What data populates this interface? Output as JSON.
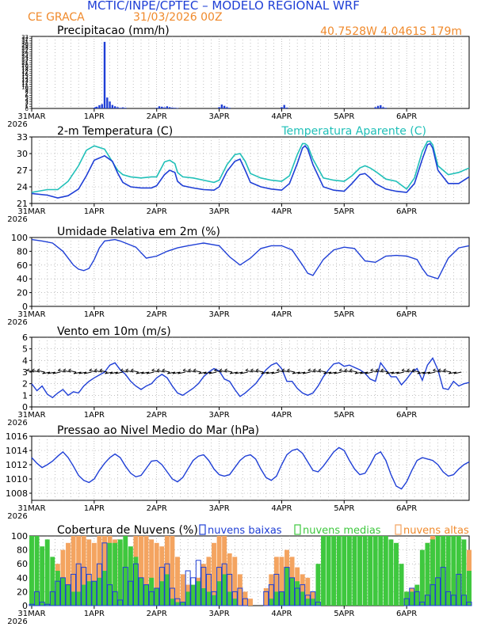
{
  "header": {
    "title": "MCTIC/INPE/CPTEC – MODELO REGIONAL WRF",
    "location": "CE GRACA",
    "run": "31/03/2026 00Z",
    "coords": "40.7528W 4.0461S 179m"
  },
  "x_axis": {
    "ticks": [
      "31MAR",
      "1APR",
      "2APR",
      "3APR",
      "4APR",
      "5APR",
      "6APR"
    ],
    "year": "2026"
  },
  "colors": {
    "blue": "#1f3fd6",
    "cyan": "#20c0b8",
    "black": "#000000",
    "green": "#3ec83e",
    "orange": "#f4a460",
    "orange_text": "#f08a2c"
  },
  "chart_data": [
    {
      "type": "bar",
      "title": "Precipitacao (mm/h)",
      "ylim": [
        0,
        33
      ],
      "x": [
        24.0,
        24.5,
        25,
        26,
        27,
        28,
        29,
        30,
        31,
        32,
        33,
        34,
        35,
        36,
        48,
        49,
        50,
        51,
        52,
        53,
        54,
        55,
        56,
        72,
        73,
        74,
        75,
        76,
        96,
        97,
        98,
        132,
        133,
        134,
        135,
        136
      ],
      "values": [
        0.3,
        0.6,
        0.8,
        1.5,
        2.0,
        30.5,
        5.0,
        3.2,
        1.6,
        1.0,
        0.6,
        0.3,
        0.5,
        0.3,
        0.3,
        1.0,
        0.8,
        0.5,
        1.0,
        0.6,
        0.4,
        0.3,
        0.2,
        0.6,
        1.8,
        1.2,
        0.6,
        0.3,
        0.6,
        1.6,
        0.4,
        0.6,
        1.2,
        1.5,
        0.6,
        0.3
      ]
    },
    {
      "type": "line",
      "title": "2-m Temperatura (C)",
      "ylim": [
        21,
        33
      ],
      "yticks": [
        21,
        24,
        27,
        30,
        33
      ],
      "series": [
        {
          "x": [
            0,
            6,
            10,
            14,
            18,
            21,
            24,
            28,
            31,
            33,
            35,
            38,
            42,
            46,
            48,
            51,
            53,
            55,
            56,
            58,
            62,
            66,
            70,
            72,
            75,
            78,
            80,
            82,
            84,
            88,
            92,
            96,
            99,
            102,
            104,
            105,
            106,
            108,
            112,
            116,
            120,
            123,
            126,
            128,
            130,
            132,
            136,
            140,
            144,
            147,
            150,
            152,
            153,
            154,
            156,
            160,
            164,
            168
          ],
          "values": [
            22.8,
            22.5,
            22.0,
            22.4,
            23.6,
            26.0,
            28.8,
            29.6,
            28.6,
            26.5,
            24.8,
            24.0,
            23.8,
            23.8,
            24.2,
            26.2,
            27.0,
            26.6,
            25.0,
            24.2,
            23.8,
            23.5,
            23.4,
            24.0,
            26.8,
            28.6,
            29.0,
            27.0,
            24.8,
            24.0,
            23.6,
            23.4,
            24.6,
            28.2,
            31.0,
            31.4,
            30.8,
            28.0,
            24.0,
            23.4,
            23.2,
            24.6,
            26.2,
            26.4,
            25.6,
            24.6,
            23.6,
            23.2,
            23.0,
            24.6,
            29.0,
            31.6,
            31.8,
            31.0,
            27.0,
            24.6,
            24.6,
            25.8
          ]
        },
        {
          "x": [
            0,
            6,
            10,
            14,
            18,
            21,
            24,
            28,
            31,
            33,
            35,
            38,
            42,
            46,
            48,
            51,
            53,
            55,
            56,
            58,
            62,
            66,
            70,
            72,
            75,
            78,
            80,
            82,
            84,
            88,
            92,
            96,
            99,
            102,
            104,
            105,
            106,
            108,
            112,
            116,
            120,
            123,
            126,
            128,
            130,
            132,
            136,
            140,
            144,
            147,
            150,
            152,
            153,
            154,
            156,
            160,
            164,
            168
          ],
          "values": [
            23.0,
            23.5,
            23.5,
            25.0,
            27.8,
            30.6,
            31.4,
            30.8,
            28.5,
            27.0,
            26.2,
            25.8,
            25.6,
            25.8,
            25.8,
            28.5,
            28.8,
            28.2,
            26.6,
            25.8,
            25.6,
            25.2,
            24.8,
            25.2,
            28.0,
            29.8,
            30.0,
            28.6,
            26.4,
            25.6,
            25.2,
            25.0,
            26.0,
            29.8,
            31.8,
            31.8,
            31.4,
            29.0,
            25.6,
            25.2,
            25.0,
            26.0,
            27.4,
            27.8,
            27.4,
            26.8,
            25.4,
            25.0,
            23.6,
            25.6,
            30.4,
            32.2,
            32.2,
            31.6,
            27.8,
            26.2,
            26.6,
            27.4
          ]
        }
      ],
      "legend": [
        "Temperatura Aparente (C)"
      ]
    },
    {
      "type": "line",
      "title": "Umidade Relativa em 2m (%)",
      "ylim": [
        0,
        100
      ],
      "yticks": [
        0,
        20,
        40,
        60,
        80,
        100
      ],
      "x": [
        0,
        4,
        8,
        12,
        16,
        18,
        20,
        22,
        24,
        26,
        28,
        32,
        34,
        36,
        40,
        44,
        48,
        52,
        56,
        60,
        66,
        72,
        76,
        80,
        84,
        88,
        92,
        96,
        100,
        104,
        106,
        108,
        112,
        116,
        120,
        124,
        128,
        132,
        136,
        140,
        144,
        148,
        150,
        152,
        156,
        160,
        164,
        168
      ],
      "values": [
        97,
        95,
        92,
        80,
        60,
        54,
        52,
        55,
        68,
        85,
        95,
        97,
        95,
        92,
        86,
        70,
        73,
        80,
        85,
        88,
        92,
        88,
        72,
        60,
        70,
        84,
        88,
        88,
        82,
        60,
        48,
        45,
        68,
        82,
        86,
        84,
        66,
        64,
        73,
        74,
        73,
        68,
        55,
        45,
        40,
        70,
        85,
        88
      ]
    },
    {
      "type": "line",
      "title": "Vento em 10m (m/s)",
      "ylim": [
        0,
        6
      ],
      "yticks": [
        0,
        1,
        2,
        3,
        4,
        5,
        6
      ],
      "x": [
        0,
        2,
        4,
        6,
        8,
        10,
        12,
        14,
        16,
        18,
        20,
        22,
        24,
        28,
        30,
        32,
        34,
        36,
        38,
        40,
        42,
        44,
        46,
        48,
        50,
        52,
        54,
        56,
        58,
        60,
        62,
        64,
        66,
        68,
        70,
        72,
        74,
        76,
        78,
        80,
        82,
        84,
        86,
        88,
        90,
        92,
        94,
        96,
        98,
        100,
        102,
        104,
        106,
        108,
        110,
        112,
        114,
        116,
        118,
        120,
        122,
        124,
        126,
        128,
        130,
        132,
        134,
        136,
        138,
        140,
        142,
        144,
        146,
        148,
        150,
        152,
        154,
        156,
        158,
        160,
        162,
        164,
        166,
        168
      ],
      "values": [
        2.0,
        1.4,
        1.8,
        1.1,
        0.8,
        1.2,
        1.5,
        1.0,
        1.3,
        1.2,
        1.8,
        2.2,
        2.5,
        3.0,
        3.6,
        3.8,
        3.2,
        2.8,
        2.2,
        1.8,
        1.5,
        1.8,
        2.0,
        2.5,
        2.8,
        2.5,
        1.8,
        1.2,
        1.0,
        1.3,
        1.6,
        2.0,
        2.6,
        3.0,
        3.3,
        3.1,
        2.4,
        2.2,
        1.5,
        0.9,
        1.2,
        1.6,
        2.0,
        2.6,
        3.2,
        3.6,
        3.8,
        3.3,
        2.2,
        2.2,
        1.6,
        1.2,
        1.0,
        1.2,
        1.8,
        2.6,
        3.2,
        3.7,
        3.8,
        3.5,
        3.6,
        3.4,
        3.2,
        2.9,
        2.4,
        2.2,
        3.8,
        3.2,
        2.6,
        2.6,
        1.9,
        2.4,
        3.0,
        3.3,
        2.3,
        3.6,
        4.2,
        3.2,
        1.6,
        1.5,
        2.2,
        1.8,
        2.0,
        2.1
      ]
    },
    {
      "type": "line",
      "title": "Pressao ao Nivel Medio do Mar (hPa)",
      "ylim": [
        1007,
        1016
      ],
      "yticks": [
        1008,
        1010,
        1012,
        1014,
        1016
      ],
      "x": [
        0,
        2,
        4,
        6,
        8,
        10,
        12,
        14,
        16,
        18,
        20,
        22,
        24,
        26,
        28,
        30,
        32,
        34,
        36,
        38,
        40,
        42,
        44,
        46,
        48,
        50,
        52,
        54,
        56,
        58,
        60,
        62,
        64,
        66,
        68,
        70,
        72,
        74,
        76,
        78,
        80,
        82,
        84,
        86,
        88,
        90,
        92,
        94,
        96,
        98,
        100,
        102,
        104,
        106,
        108,
        110,
        112,
        114,
        116,
        118,
        120,
        122,
        124,
        126,
        128,
        130,
        132,
        134,
        136,
        138,
        140,
        142,
        144,
        146,
        148,
        150,
        152,
        154,
        156,
        158,
        160,
        162,
        164,
        166,
        168
      ],
      "values": [
        1013.0,
        1012.2,
        1011.6,
        1012.0,
        1012.5,
        1013.2,
        1013.8,
        1013.0,
        1011.8,
        1010.5,
        1009.8,
        1009.5,
        1010.0,
        1011.2,
        1012.2,
        1013.0,
        1013.5,
        1013.0,
        1011.8,
        1010.8,
        1010.3,
        1010.5,
        1011.5,
        1012.5,
        1012.6,
        1012.0,
        1011.0,
        1010.0,
        1009.6,
        1010.2,
        1011.4,
        1012.6,
        1013.2,
        1013.4,
        1012.6,
        1011.4,
        1010.6,
        1010.4,
        1010.6,
        1011.6,
        1012.6,
        1013.2,
        1013.4,
        1012.8,
        1011.4,
        1010.2,
        1009.8,
        1010.4,
        1012.0,
        1013.4,
        1014.0,
        1014.2,
        1013.6,
        1012.4,
        1011.2,
        1011.0,
        1011.8,
        1012.8,
        1013.8,
        1014.4,
        1014.0,
        1012.6,
        1011.4,
        1010.6,
        1010.8,
        1012.0,
        1013.4,
        1013.8,
        1012.6,
        1010.6,
        1009.0,
        1008.6,
        1009.6,
        1011.2,
        1012.6,
        1013.0,
        1012.8,
        1012.6,
        1012.0,
        1011.0,
        1010.4,
        1010.6,
        1011.4,
        1012.0,
        1012.4
      ]
    },
    {
      "type": "bar",
      "title": "Cobertura de Nuvens (%)",
      "ylim": [
        0,
        100
      ],
      "yticks": [
        0,
        20,
        40,
        60,
        80,
        100
      ],
      "x": [
        0,
        2,
        4,
        6,
        8,
        10,
        12,
        14,
        16,
        18,
        20,
        22,
        24,
        26,
        28,
        30,
        32,
        34,
        36,
        38,
        40,
        42,
        44,
        46,
        48,
        50,
        52,
        54,
        56,
        58,
        60,
        62,
        64,
        66,
        68,
        70,
        72,
        74,
        76,
        78,
        80,
        82,
        84,
        86,
        88,
        90,
        92,
        94,
        96,
        98,
        100,
        102,
        104,
        106,
        108,
        110,
        112,
        114,
        116,
        118,
        120,
        122,
        124,
        126,
        128,
        130,
        132,
        134,
        136,
        138,
        140,
        142,
        144,
        146,
        148,
        150,
        152,
        154,
        156,
        158,
        160,
        162,
        164,
        166,
        168
      ],
      "series": [
        {
          "name": "nuvens baixas",
          "values": [
            2,
            20,
            5,
            2,
            20,
            35,
            40,
            30,
            45,
            60,
            55,
            45,
            35,
            60,
            90,
            30,
            20,
            8,
            55,
            35,
            60,
            40,
            30,
            20,
            25,
            55,
            60,
            25,
            10,
            5,
            50,
            40,
            65,
            55,
            45,
            20,
            55,
            60,
            45,
            20,
            25,
            10,
            0,
            0,
            0,
            20,
            30,
            45,
            20,
            55,
            40,
            25,
            30,
            15,
            20,
            5,
            0,
            0,
            0,
            0,
            0,
            0,
            0,
            0,
            0,
            0,
            0,
            0,
            0,
            0,
            0,
            0,
            10,
            25,
            20,
            5,
            15,
            30,
            40,
            55,
            20,
            15,
            45,
            15,
            5
          ]
        },
        {
          "name": "nuvens medias",
          "values": [
            100,
            100,
            85,
            95,
            70,
            50,
            40,
            30,
            20,
            20,
            30,
            35,
            35,
            40,
            50,
            90,
            90,
            95,
            100,
            85,
            70,
            40,
            30,
            40,
            25,
            35,
            45,
            10,
            5,
            5,
            20,
            30,
            35,
            25,
            20,
            15,
            35,
            45,
            20,
            10,
            0,
            0,
            0,
            0,
            0,
            0,
            10,
            20,
            20,
            55,
            40,
            35,
            20,
            10,
            10,
            60,
            100,
            100,
            100,
            100,
            100,
            100,
            100,
            100,
            100,
            100,
            100,
            100,
            100,
            95,
            90,
            60,
            20,
            20,
            30,
            80,
            90,
            95,
            100,
            100,
            100,
            100,
            100,
            95,
            50
          ]
        },
        {
          "name": "nuvens altas",
          "values": [
            0,
            0,
            0,
            5,
            20,
            60,
            80,
            90,
            100,
            100,
            100,
            95,
            90,
            100,
            100,
            100,
            95,
            90,
            80,
            70,
            100,
            100,
            100,
            95,
            90,
            85,
            100,
            100,
            70,
            45,
            30,
            20,
            40,
            60,
            70,
            90,
            100,
            100,
            75,
            70,
            45,
            20,
            10,
            0,
            0,
            25,
            45,
            70,
            70,
            80,
            70,
            55,
            45,
            40,
            20,
            5,
            0,
            0,
            0,
            0,
            0,
            0,
            0,
            0,
            0,
            0,
            0,
            0,
            0,
            0,
            0,
            0,
            20,
            25,
            15,
            60,
            90,
            100,
            95,
            80,
            50,
            40,
            60,
            70,
            80
          ]
        }
      ]
    }
  ]
}
